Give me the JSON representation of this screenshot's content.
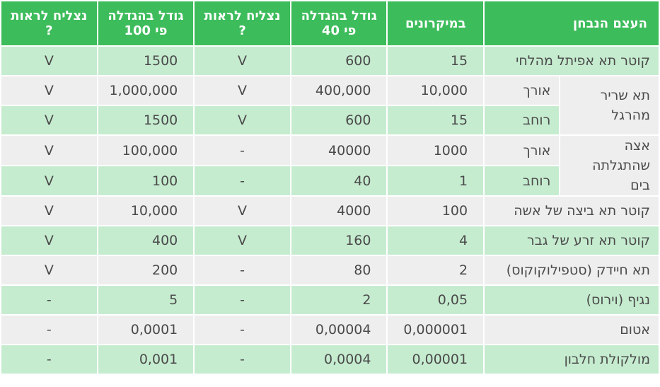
{
  "headers": {
    "object": "העצם הנבחן",
    "microns": "במיקרונים",
    "mag40": "גודל בהגדלה פי 40",
    "see40": "נצליח לראות ?",
    "mag100": "גודל בהגדלה פי 100",
    "see100": "נצליח לראות ?"
  },
  "rows": [
    {
      "label": "קוטר תא אפיתל מהלחי",
      "microns": "15",
      "mag40": "600",
      "see40": "V",
      "mag100": "1500",
      "see100": "V"
    },
    {
      "group": "תא שריר מהרגל",
      "sub": "אורך",
      "microns": "10,000",
      "mag40": "400,000",
      "see40": "V",
      "mag100": "1,000,000",
      "see100": "V"
    },
    {
      "sub": "רוחב",
      "microns": "15",
      "mag40": "600",
      "see40": "V",
      "mag100": "1500",
      "see100": "V"
    },
    {
      "group": "אצה שהתגלתה בים",
      "sub": "אורך",
      "microns": "1000",
      "mag40": "40000",
      "see40": "-",
      "mag100": "100,000",
      "see100": "V"
    },
    {
      "sub": "רוחב",
      "microns": "1",
      "mag40": "40",
      "see40": "-",
      "mag100": "100",
      "see100": "V"
    },
    {
      "label": "קוטר תא ביצה של אשה",
      "microns": "100",
      "mag40": "4000",
      "see40": "V",
      "mag100": "10,000",
      "see100": "V"
    },
    {
      "label": "קוטר תא זרע של גבר",
      "microns": "4",
      "mag40": "160",
      "see40": "V",
      "mag100": "400",
      "see100": "V"
    },
    {
      "label": "תא חיידק (סטפילוקוקוס)",
      "microns": "2",
      "mag40": "80",
      "see40": "-",
      "mag100": "200",
      "see100": "V"
    },
    {
      "label": "נגיף (וירוס)",
      "microns": "0,05",
      "mag40": "2",
      "see40": "-",
      "mag100": "5",
      "see100": "-"
    },
    {
      "label": "אטום",
      "microns": "0,000001",
      "mag40": "0,00004",
      "see40": "-",
      "mag100": "0,0001",
      "see100": "-"
    },
    {
      "label": "מולקולת חלבון",
      "microns": "0,00001",
      "mag40": "0,0004",
      "see40": "-",
      "mag100": "0,001",
      "see100": "-"
    }
  ],
  "colors": {
    "header": "#3dbc5b",
    "row_green": "#c6ecd0",
    "row_gray": "#eeeeee",
    "text": "#4a4a4a"
  }
}
